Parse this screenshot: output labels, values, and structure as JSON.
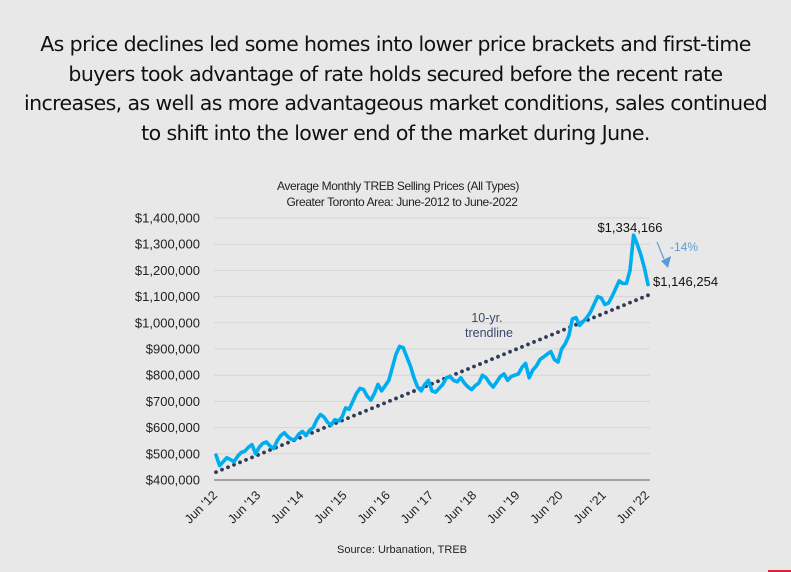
{
  "headline": "As price declines led some homes into lower price brackets and first-time buyers took advantage of rate holds secured before the recent rate increases, as well as more advantageous market conditions, sales continued to shift into the lower end of the market during June.",
  "colors": {
    "background": "#e8e8e8",
    "series": "#00adef",
    "trendline": "#2e3a56",
    "gridline": "#d6d6d6",
    "axis": "#8a8a8a",
    "arrow": "#5b9bd5",
    "accent_bar": "#d9263a"
  },
  "chart_data": {
    "type": "line",
    "title": "Average Monthly TREB Selling Prices (All Types)",
    "subtitle": "Greater Toronto Area: June-2012 to June-2022",
    "xlabel": "",
    "ylabel": "",
    "ylim": [
      400000,
      1400000
    ],
    "xlim_months": [
      0,
      120
    ],
    "yticks": [
      400000,
      500000,
      600000,
      700000,
      800000,
      900000,
      1000000,
      1100000,
      1200000,
      1300000,
      1400000
    ],
    "ytick_labels": [
      "$400,000",
      "$500,000",
      "$600,000",
      "$700,000",
      "$800,000",
      "$900,000",
      "$1,000,000",
      "$1,100,000",
      "$1,200,000",
      "$1,300,000",
      "$1,400,000"
    ],
    "xtick_labels": [
      "Jun '12",
      "Jun '13",
      "Jun '14",
      "Jun '15",
      "Jun '16",
      "Jun '17",
      "Jun '18",
      "Jun '19",
      "Jun '20",
      "Jun '21",
      "Jun '22"
    ],
    "xtick_months": [
      0,
      12,
      24,
      36,
      48,
      60,
      72,
      84,
      96,
      108,
      120
    ],
    "grid": true,
    "legend": "none",
    "series": [
      {
        "name": "Average Monthly Selling Price",
        "months": [
          0,
          1,
          2,
          3,
          4,
          5,
          6,
          7,
          8,
          9,
          10,
          11,
          12,
          13,
          14,
          15,
          16,
          17,
          18,
          19,
          20,
          21,
          22,
          23,
          24,
          25,
          26,
          27,
          28,
          29,
          30,
          31,
          32,
          33,
          34,
          35,
          36,
          37,
          38,
          39,
          40,
          41,
          42,
          43,
          44,
          45,
          46,
          47,
          48,
          49,
          50,
          51,
          52,
          53,
          54,
          55,
          56,
          57,
          58,
          59,
          60,
          61,
          62,
          63,
          64,
          65,
          66,
          67,
          68,
          69,
          70,
          71,
          72,
          73,
          74,
          75,
          76,
          77,
          78,
          79,
          80,
          81,
          82,
          83,
          84,
          85,
          86,
          87,
          88,
          89,
          90,
          91,
          92,
          93,
          94,
          95,
          96,
          97,
          98,
          99,
          100,
          101,
          102,
          103,
          104,
          105,
          106,
          107,
          108,
          109,
          110,
          111,
          112,
          113,
          114,
          115,
          116,
          117,
          118,
          119,
          120
        ],
        "values": [
          495000,
          455000,
          470000,
          485000,
          478000,
          470000,
          490000,
          505000,
          510000,
          525000,
          535000,
          500000,
          525000,
          540000,
          545000,
          530000,
          520000,
          550000,
          570000,
          580000,
          565000,
          555000,
          555000,
          575000,
          585000,
          570000,
          590000,
          600000,
          630000,
          650000,
          640000,
          620000,
          610000,
          630000,
          625000,
          640000,
          675000,
          670000,
          700000,
          730000,
          750000,
          745000,
          720000,
          705000,
          730000,
          765000,
          740000,
          760000,
          780000,
          830000,
          880000,
          910000,
          905000,
          870000,
          835000,
          790000,
          755000,
          740000,
          765000,
          780000,
          740000,
          735000,
          750000,
          765000,
          790000,
          795000,
          780000,
          775000,
          790000,
          770000,
          755000,
          745000,
          760000,
          770000,
          800000,
          790000,
          770000,
          755000,
          775000,
          795000,
          805000,
          780000,
          795000,
          800000,
          805000,
          830000,
          845000,
          790000,
          820000,
          835000,
          860000,
          870000,
          880000,
          890000,
          860000,
          850000,
          900000,
          920000,
          950000,
          1015000,
          1020000,
          990000,
          1005000,
          1020000,
          1040000,
          1070000,
          1100000,
          1095000,
          1070000,
          1075000,
          1100000,
          1130000,
          1160000,
          1150000,
          1150000,
          1200000,
          1334166,
          1300000,
          1260000,
          1210000,
          1146254
        ]
      },
      {
        "name": "10-yr. trendline",
        "style": "dotted",
        "months": [
          0,
          120
        ],
        "values": [
          430000,
          1105000
        ]
      }
    ],
    "annotations": [
      {
        "text": "$1,334,166",
        "month": 116,
        "value": 1334166,
        "role": "peak"
      },
      {
        "text": "$1,146,254",
        "month": 120,
        "value": 1146254,
        "role": "latest"
      },
      {
        "text": "-14%",
        "role": "change",
        "from_month": 116,
        "to_month": 120
      },
      {
        "text": "10-yr.",
        "role": "trendline-label-line1"
      },
      {
        "text": "trendline",
        "role": "trendline-label-line2"
      }
    ],
    "source": "Source: Urbanation, TREB"
  }
}
